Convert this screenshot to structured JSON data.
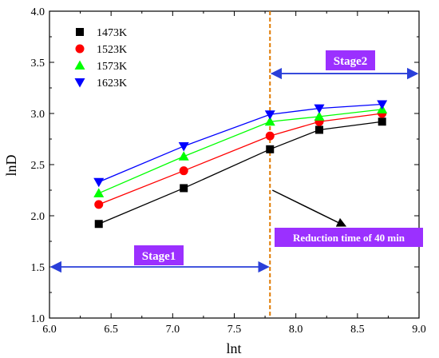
{
  "chart_data": {
    "type": "line",
    "xlabel": "lnt",
    "ylabel": "lnD",
    "xlim": [
      6.0,
      9.0
    ],
    "ylim": [
      1.0,
      4.0
    ],
    "x_ticks": [
      "6.0",
      "6.5",
      "7.0",
      "7.5",
      "8.0",
      "8.5",
      "9.0"
    ],
    "y_ticks": [
      "1.0",
      "1.5",
      "2.0",
      "2.5",
      "3.0",
      "3.5",
      "4.0"
    ],
    "x": [
      6.4,
      7.09,
      7.79,
      8.19,
      8.7
    ],
    "series": [
      {
        "name": "1473K",
        "marker": "square",
        "color": "#000000",
        "values": [
          1.92,
          2.27,
          2.65,
          2.84,
          2.92
        ]
      },
      {
        "name": "1523K",
        "marker": "circle",
        "color": "#ff0000",
        "values": [
          2.11,
          2.44,
          2.78,
          2.92,
          3.0
        ]
      },
      {
        "name": "1573K",
        "marker": "triangle-up",
        "color": "#00ff00",
        "values": [
          2.22,
          2.58,
          2.92,
          2.97,
          3.04
        ]
      },
      {
        "name": "1623K",
        "marker": "triangle-down",
        "color": "#0000ff",
        "values": [
          2.33,
          2.68,
          2.99,
          3.05,
          3.09
        ]
      }
    ],
    "legend_position": "top-left",
    "reduction_line_x": 7.79,
    "reduction_label": "Reduction time of 40 min",
    "stage1": {
      "label": "Stage1",
      "from": 6.0,
      "to": 7.79,
      "y": 1.5
    },
    "stage2": {
      "label": "Stage2",
      "from": 7.79,
      "to": 9.0,
      "y": 3.39
    },
    "colors": {
      "stage_box": "#9b30ff",
      "stage_arrow": "#2a3fd9",
      "reduction_line": "#e07b00",
      "note_arrow": "#000000"
    }
  }
}
